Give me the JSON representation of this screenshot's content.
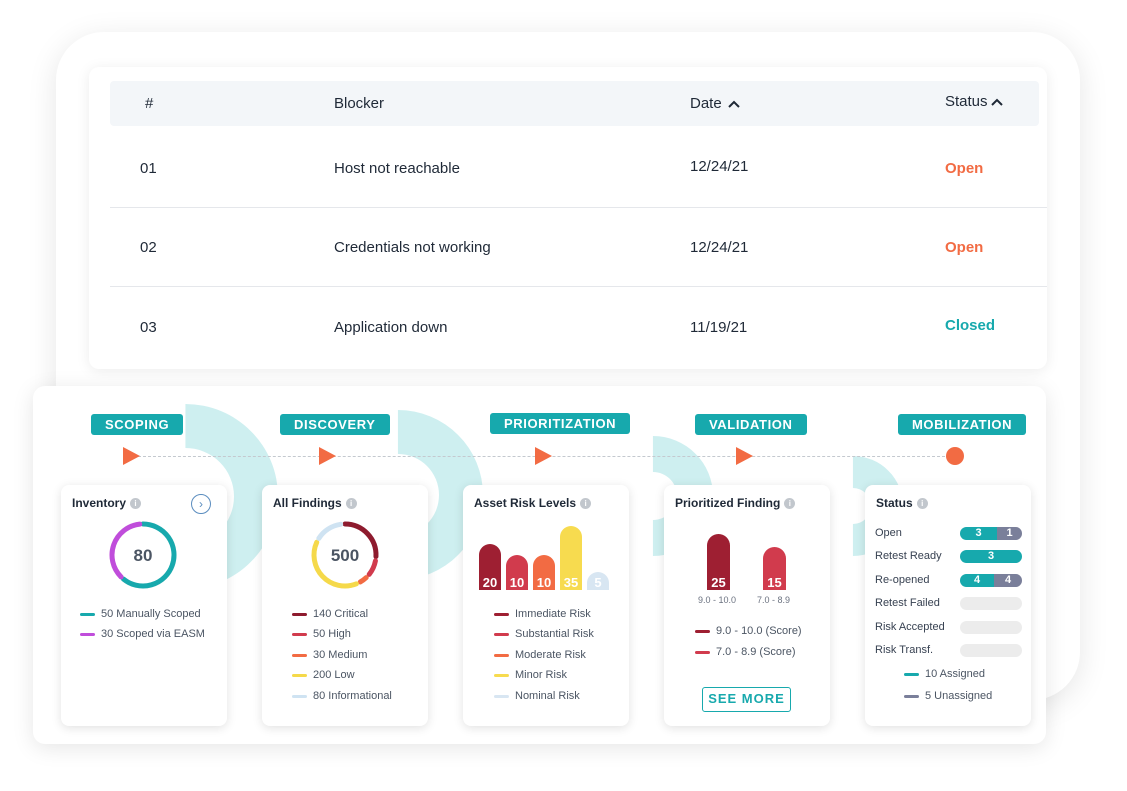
{
  "table": {
    "headers": {
      "num": "#",
      "blocker": "Blocker",
      "date": "Date",
      "status": "Status"
    },
    "rows": [
      {
        "num": "01",
        "blocker": "Host not reachable",
        "date": "12/24/21",
        "status": "Open"
      },
      {
        "num": "02",
        "blocker": "Credentials not working",
        "date": "12/24/21",
        "status": "Open"
      },
      {
        "num": "03",
        "blocker": "Application down",
        "date": "11/19/21",
        "status": "Closed"
      }
    ]
  },
  "stages": [
    "SCOPING",
    "DISCOVERY",
    "PRIORITIZATION",
    "VALIDATION",
    "MOBILIZATION"
  ],
  "inventory": {
    "title": "Inventory",
    "total": "80",
    "legend": [
      {
        "label": "50 Manually Scoped",
        "color": "#17a9ad",
        "value": 50
      },
      {
        "label": "30 Scoped via EASM",
        "color": "#c04ddb",
        "value": 30
      }
    ]
  },
  "findings": {
    "title": "All Findings",
    "total": "500",
    "legend": [
      {
        "label": "140 Critical",
        "color": "#8e1b2e",
        "value": 140
      },
      {
        "label": "50 High",
        "color": "#d13b4d",
        "value": 50
      },
      {
        "label": "30 Medium",
        "color": "#f26b43",
        "value": 30
      },
      {
        "label": "200 Low",
        "color": "#f5d94a",
        "value": 200
      },
      {
        "label": "80 Informational",
        "color": "#cfe3f2",
        "value": 80
      }
    ]
  },
  "asset_risk": {
    "title": "Asset Risk Levels",
    "bars": [
      {
        "value": "20",
        "color": "#9e1f32"
      },
      {
        "value": "10",
        "color": "#d13b4d"
      },
      {
        "value": "10",
        "color": "#f26b43"
      },
      {
        "value": "35",
        "color": "#f7db4f"
      },
      {
        "value": "5",
        "color": "#d8e6f2"
      }
    ],
    "legend": [
      {
        "label": "Immediate Risk",
        "color": "#9e1f32"
      },
      {
        "label": "Substantial Risk",
        "color": "#d13b4d"
      },
      {
        "label": "Moderate Risk",
        "color": "#f26b43"
      },
      {
        "label": "Minor Risk",
        "color": "#f7db4f"
      },
      {
        "label": "Nominal Risk",
        "color": "#d8e6f2"
      }
    ]
  },
  "prioritized": {
    "title": "Prioritized Finding",
    "bars": [
      {
        "value": "25",
        "range": "9.0 - 10.0",
        "color": "#9e1f32"
      },
      {
        "value": "15",
        "range": "7.0 - 8.9",
        "color": "#d13b4d"
      }
    ],
    "legend": [
      {
        "label": "9.0 - 10.0 (Score)",
        "color": "#9e1f32"
      },
      {
        "label": "7.0 - 8.9 (Score)",
        "color": "#d13b4d"
      }
    ],
    "button": "SEE MORE"
  },
  "status": {
    "title": "Status",
    "rows": [
      {
        "label": "Open",
        "assigned": "3",
        "unassigned": "1",
        "fraction_assigned": 0.6,
        "fraction_unassigned": 0.4
      },
      {
        "label": "Retest Ready",
        "assigned": "3",
        "unassigned": "",
        "fraction_assigned": 1.0,
        "fraction_unassigned": 0
      },
      {
        "label": "Re-opened",
        "assigned": "4",
        "unassigned": "4",
        "fraction_assigned": 0.55,
        "fraction_unassigned": 0.45
      },
      {
        "label": "Retest Failed",
        "assigned": "",
        "unassigned": "",
        "fraction_assigned": 0,
        "fraction_unassigned": 0
      },
      {
        "label": "Risk Accepted",
        "assigned": "",
        "unassigned": "",
        "fraction_assigned": 0,
        "fraction_unassigned": 0
      },
      {
        "label": "Risk Transf.",
        "assigned": "",
        "unassigned": "",
        "fraction_assigned": 0,
        "fraction_unassigned": 0
      }
    ],
    "legend": [
      {
        "label": "10 Assigned",
        "color": "#17a9ad"
      },
      {
        "label": "5 Unassigned",
        "color": "#7a7f9a"
      }
    ]
  },
  "colors": {
    "accent": "#17a9ad",
    "orange": "#f26b43"
  }
}
